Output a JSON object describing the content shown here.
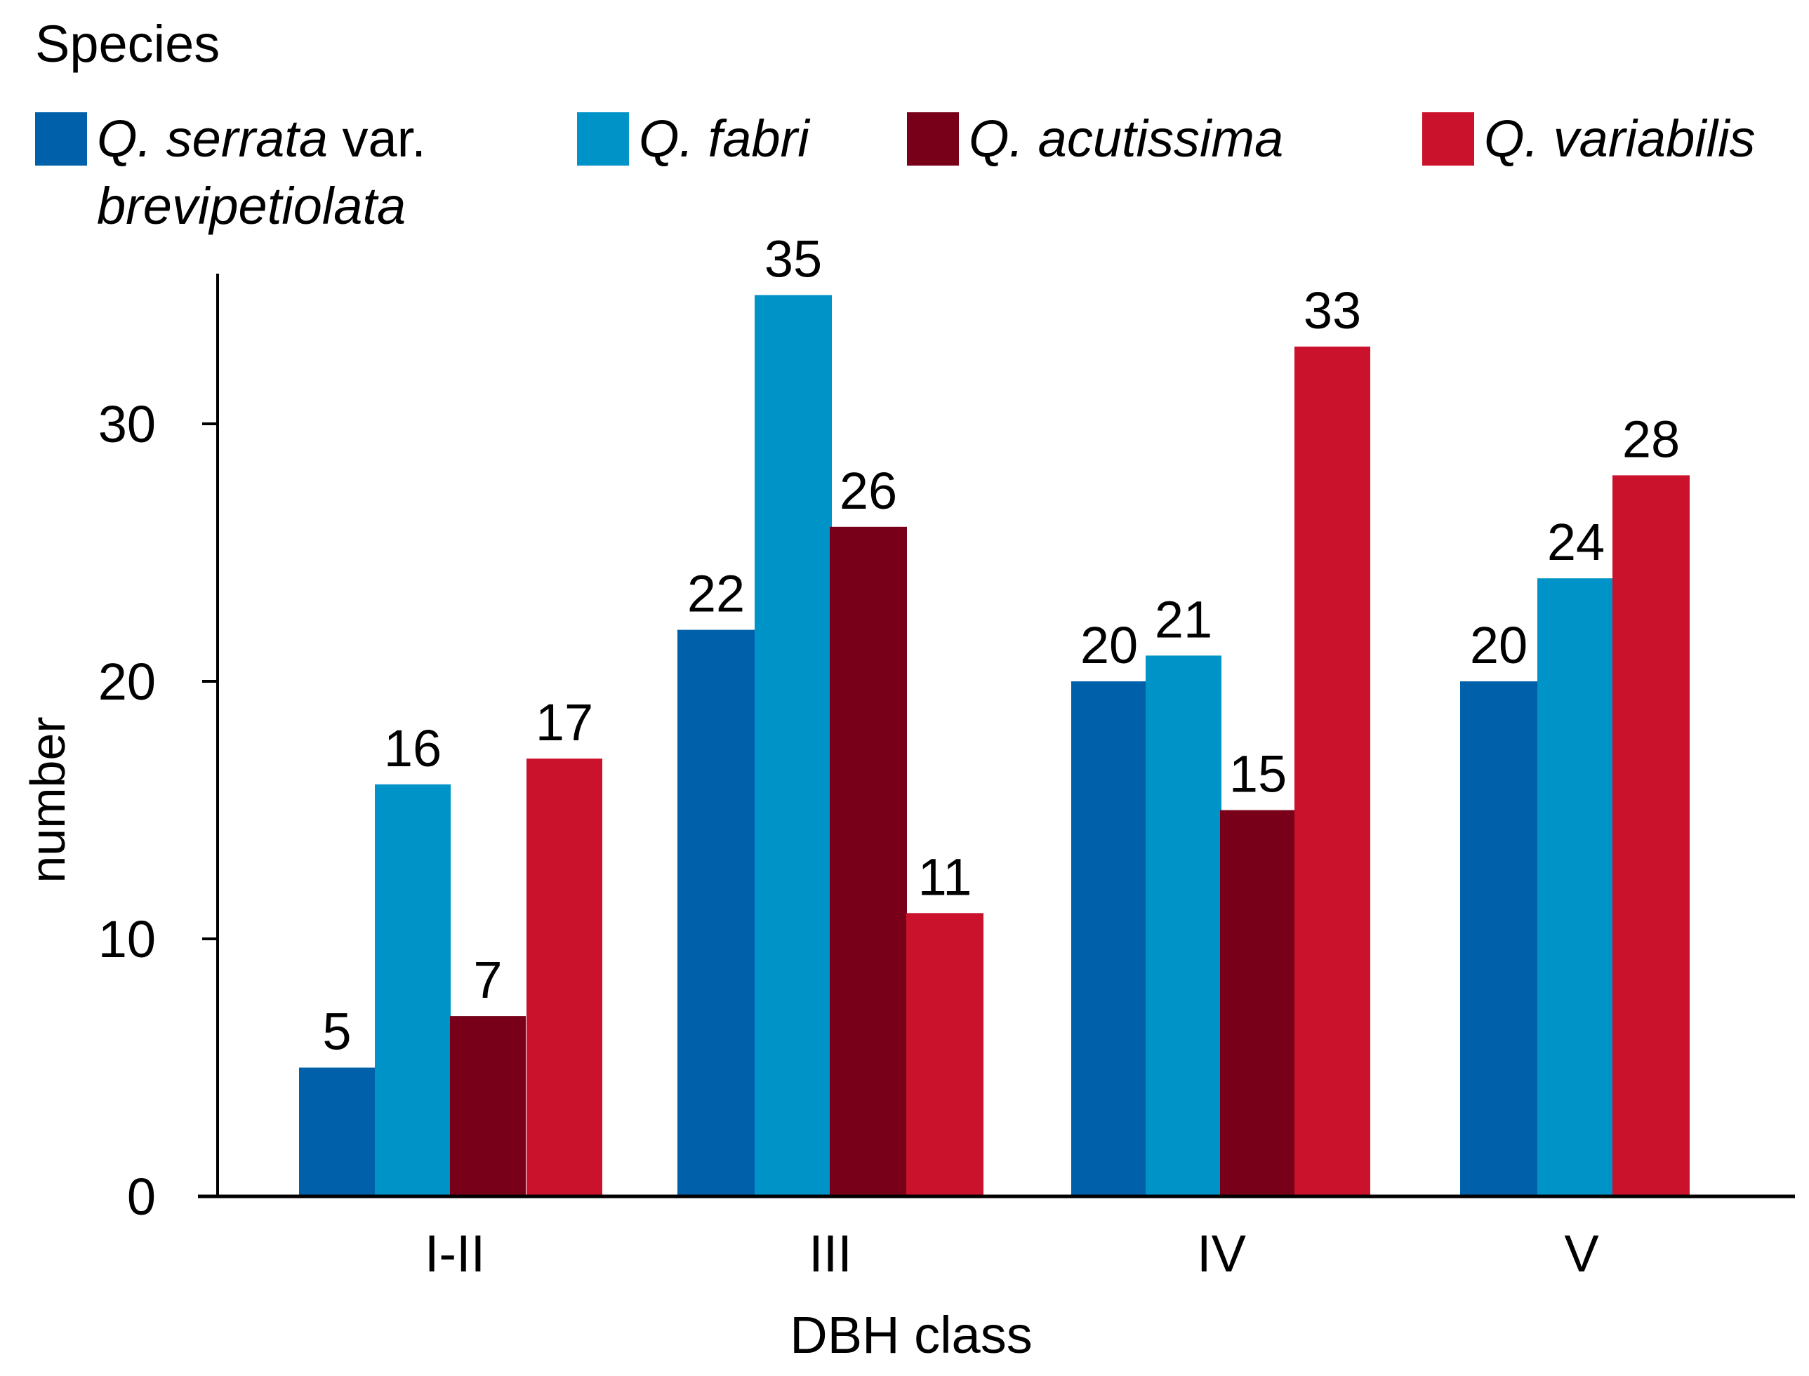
{
  "chart_data": {
    "type": "bar",
    "title": "",
    "legend_title": "Species",
    "xlabel": "DBH class",
    "ylabel": "number",
    "ylim": [
      0,
      35
    ],
    "yticks": [
      0,
      10,
      20,
      30
    ],
    "categories": [
      "I-II",
      "III",
      "IV",
      "V"
    ],
    "series": [
      {
        "name": "Q. serrata var. brevipetiolata",
        "name_parts": [
          "Q. serrata",
          " var.",
          "brevipetiolata"
        ],
        "color": "#0060AA",
        "values": [
          5,
          22,
          20,
          20
        ]
      },
      {
        "name": "Q. fabri",
        "color": "#0093C8",
        "values": [
          16,
          35,
          21,
          24
        ]
      },
      {
        "name": "Q. acutissima",
        "color": "#780019",
        "values": [
          7,
          26,
          15,
          null
        ]
      },
      {
        "name": "Q. variabilis",
        "color": "#CB122C",
        "values": [
          17,
          11,
          33,
          28
        ]
      }
    ],
    "grid": false
  }
}
